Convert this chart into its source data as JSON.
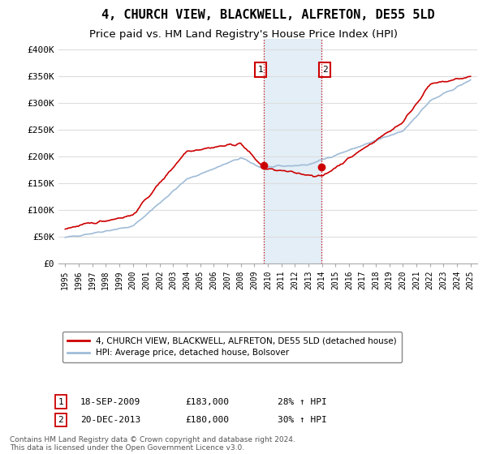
{
  "title": "4, CHURCH VIEW, BLACKWELL, ALFRETON, DE55 5LD",
  "subtitle": "Price paid vs. HM Land Registry's House Price Index (HPI)",
  "ylim": [
    0,
    420000
  ],
  "yticks": [
    0,
    50000,
    100000,
    150000,
    200000,
    250000,
    300000,
    350000,
    400000
  ],
  "ytick_labels": [
    "£0",
    "£50K",
    "£100K",
    "£150K",
    "£200K",
    "£250K",
    "£300K",
    "£350K",
    "£400K"
  ],
  "background_color": "#ffffff",
  "grid_color": "#dddddd",
  "hpi_color": "#a0bcd8",
  "price_color": "#cc0000",
  "shade_color": "#d8e8f5",
  "t1_year": 2009.708,
  "t2_year": 2013.958,
  "t1_price": 183000,
  "t2_price": 180000,
  "legend_label1": "4, CHURCH VIEW, BLACKWELL, ALFRETON, DE55 5LD (detached house)",
  "legend_label2": "HPI: Average price, detached house, Bolsover",
  "tx1_date": "18-SEP-2009",
  "tx1_price": "£183,000",
  "tx1_hpi": "28% ↑ HPI",
  "tx2_date": "20-DEC-2013",
  "tx2_price": "£180,000",
  "tx2_hpi": "30% ↑ HPI",
  "footnote": "Contains HM Land Registry data © Crown copyright and database right 2024.\nThis data is licensed under the Open Government Licence v3.0."
}
